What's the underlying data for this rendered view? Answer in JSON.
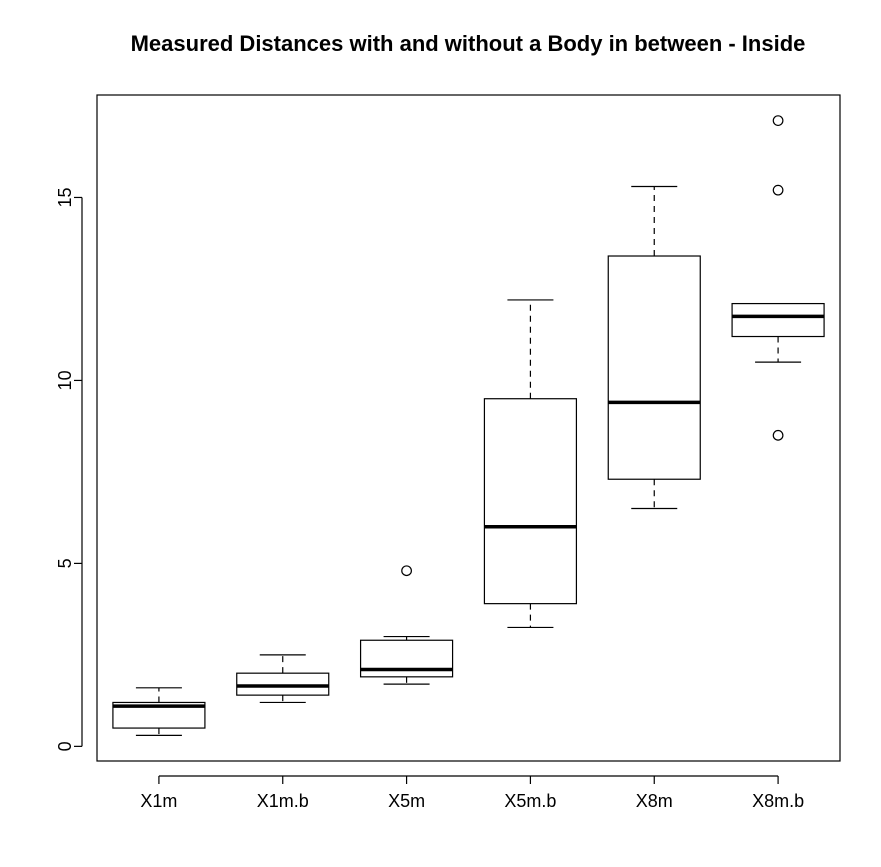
{
  "chart_data": {
    "type": "boxplot",
    "title": "Measured Distances with and without a Body in between - Inside",
    "xlabel": "",
    "ylabel": "",
    "ylim": [
      -0.4,
      17.8
    ],
    "yticks": [
      0,
      5,
      10,
      15
    ],
    "grid": false,
    "categories": [
      "X1m",
      "X1m.b",
      "X5m",
      "X5m.b",
      "X8m",
      "X8m.b"
    ],
    "boxes": [
      {
        "label": "X1m",
        "whisker_low": 0.3,
        "q1": 0.5,
        "median": 1.1,
        "q3": 1.2,
        "whisker_high": 1.6,
        "outliers": []
      },
      {
        "label": "X1m.b",
        "whisker_low": 1.2,
        "q1": 1.4,
        "median": 1.65,
        "q3": 2.0,
        "whisker_high": 2.5,
        "outliers": []
      },
      {
        "label": "X5m",
        "whisker_low": 1.7,
        "q1": 1.9,
        "median": 2.1,
        "q3": 2.9,
        "whisker_high": 3.0,
        "outliers": [
          4.8
        ]
      },
      {
        "label": "X5m.b",
        "whisker_low": 3.25,
        "q1": 3.9,
        "median": 6.0,
        "q3": 9.5,
        "whisker_high": 12.2,
        "outliers": []
      },
      {
        "label": "X8m",
        "whisker_low": 6.5,
        "q1": 7.3,
        "median": 9.4,
        "q3": 13.4,
        "whisker_high": 15.3,
        "outliers": []
      },
      {
        "label": "X8m.b",
        "whisker_low": 10.5,
        "q1": 11.2,
        "median": 11.75,
        "q3": 12.1,
        "whisker_high": 12.1,
        "outliers": [
          8.5,
          15.2,
          17.1
        ]
      }
    ]
  }
}
